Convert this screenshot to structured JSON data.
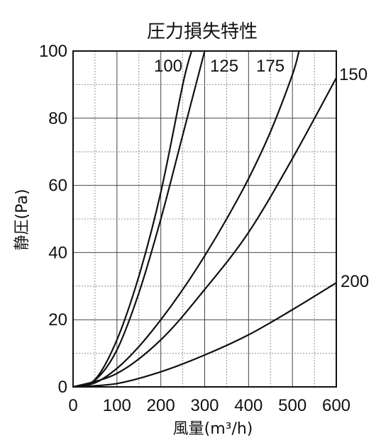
{
  "chart_data": {
    "type": "line",
    "title": "圧力損失特性",
    "xlabel": "風量(m³/h)",
    "ylabel": "静圧(Pa)",
    "xlim": [
      0,
      600
    ],
    "ylim": [
      0,
      100
    ],
    "x_ticks": [
      "0",
      "100",
      "200",
      "300",
      "400",
      "500",
      "600"
    ],
    "y_ticks": [
      "0",
      "20",
      "40",
      "60",
      "80",
      "100"
    ],
    "grid": true,
    "series": [
      {
        "name": "100",
        "x": [
          0,
          50,
          100,
          150,
          200,
          250,
          270
        ],
        "y": [
          0,
          2.2,
          14,
          33,
          58,
          90,
          100
        ]
      },
      {
        "name": "125",
        "x": [
          0,
          50,
          100,
          150,
          200,
          250,
          300
        ],
        "y": [
          0,
          2.0,
          11,
          28,
          50,
          75,
          100
        ]
      },
      {
        "name": "175",
        "x": [
          0,
          50,
          100,
          150,
          200,
          250,
          300,
          350,
          400,
          450,
          500,
          515
        ],
        "y": [
          0,
          1.2,
          5.5,
          12,
          20,
          29,
          39,
          50,
          62,
          76,
          93,
          100
        ]
      },
      {
        "name": "150",
        "x": [
          0,
          100,
          200,
          300,
          400,
          500,
          600
        ],
        "y": [
          0,
          4,
          14,
          29,
          46,
          68,
          92
        ]
      },
      {
        "name": "200",
        "x": [
          0,
          100,
          200,
          300,
          400,
          500,
          600
        ],
        "y": [
          0,
          1,
          4.5,
          9.5,
          15.5,
          23,
          31
        ]
      }
    ],
    "curve_labels": [
      "100",
      "125",
      "175",
      "150",
      "200"
    ]
  }
}
